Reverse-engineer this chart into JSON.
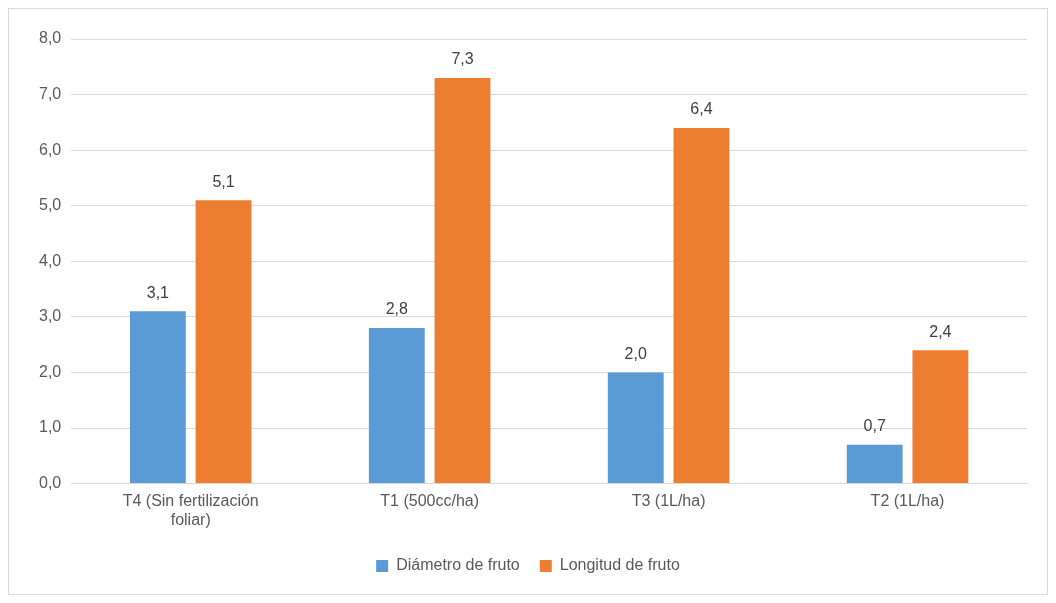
{
  "chart_data": {
    "type": "bar",
    "categories": [
      "T4 (Sin fertilización foliar)",
      "T1 (500cc/ha)",
      "T3 (1L/ha)",
      "T2 (1L/ha)"
    ],
    "series": [
      {
        "name": "Diámetro de fruto",
        "color": "#5b9bd5",
        "values": [
          3.1,
          2.8,
          2.0,
          0.7
        ],
        "value_labels": [
          "3,1",
          "2,8",
          "2,0",
          "0,7"
        ]
      },
      {
        "name": "Longitud de fruto",
        "color": "#ed7d31",
        "values": [
          5.1,
          7.3,
          6.4,
          2.4
        ],
        "value_labels": [
          "5,1",
          "7,3",
          "6,4",
          "2,4"
        ]
      }
    ],
    "ylim": [
      0,
      8
    ],
    "yticks": [
      {
        "value": 0,
        "label": "0,0"
      },
      {
        "value": 1,
        "label": "1,0"
      },
      {
        "value": 2,
        "label": "2,0"
      },
      {
        "value": 3,
        "label": "3,0"
      },
      {
        "value": 4,
        "label": "4,0"
      },
      {
        "value": 5,
        "label": "5,0"
      },
      {
        "value": 6,
        "label": "6,0"
      },
      {
        "value": 7,
        "label": "7,0"
      },
      {
        "value": 8,
        "label": "8,0"
      }
    ],
    "grid": "y",
    "legend": "bottom"
  }
}
